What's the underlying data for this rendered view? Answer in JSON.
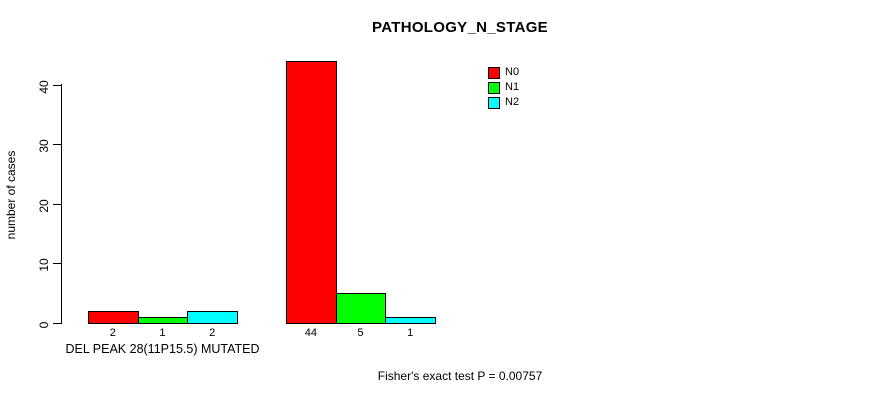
{
  "chart_data": {
    "type": "bar",
    "title": "PATHOLOGY_N_STAGE",
    "ylabel": "number of cases",
    "xlabel": "",
    "ylim": [
      0,
      44
    ],
    "yticks": [
      0,
      10,
      20,
      30,
      40
    ],
    "grid": false,
    "legend_position": "top-right",
    "categories": [
      "DEL PEAK 28(11P15.5) MUTATED",
      ""
    ],
    "series": [
      {
        "name": "N0",
        "color": "#FF0000",
        "values": [
          2,
          44
        ]
      },
      {
        "name": "N1",
        "color": "#00FF00",
        "values": [
          1,
          5
        ]
      },
      {
        "name": "N2",
        "color": "#00FFFF",
        "values": [
          2,
          1
        ]
      }
    ],
    "bar_value_labels": [
      [
        "2",
        "1",
        "2"
      ],
      [
        "44",
        "5",
        "1"
      ]
    ],
    "annotation": "Fisher's exact test P = 0.00757"
  }
}
